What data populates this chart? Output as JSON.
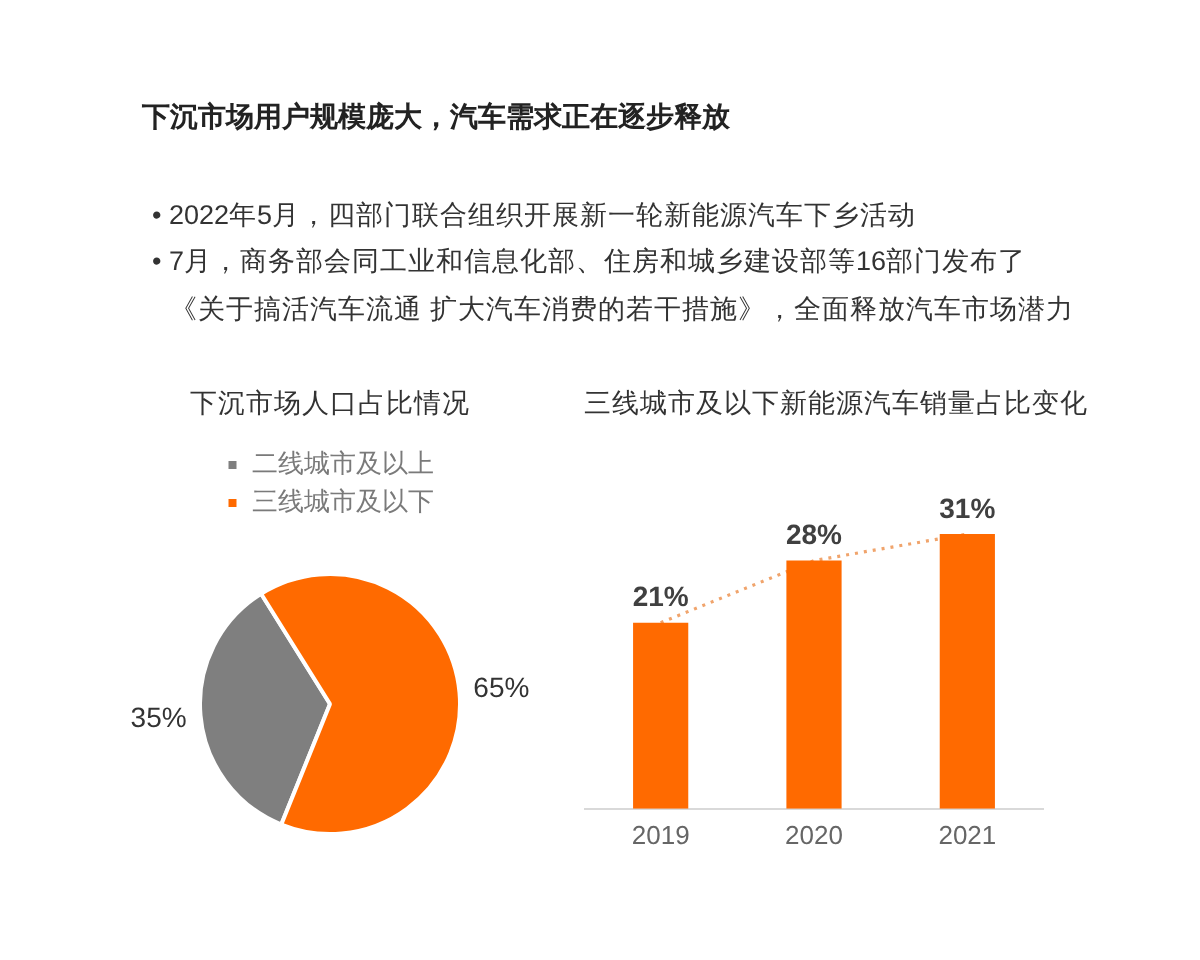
{
  "chart_data": [
    {
      "type": "other",
      "title": "下沉市场用户规模庞大，汽车需求正在逐步释放",
      "annotations": [
        "• 2022年5月，四部门联合组织开展新一轮新能源汽车下乡活动",
        "• 7月，商务部会同工业和信息化部、住房和城乡建设部等16部门发布了《关于搞活汽车流通 扩大汽车消费的若干措施》，全面释放汽车市场潜力"
      ]
    },
    {
      "type": "pie",
      "title": "下沉市场人口占比情况",
      "categories": [
        "二线城市及以上",
        "三线城市及以下"
      ],
      "values": [
        35,
        65
      ],
      "colors": [
        "#7f7f7f",
        "#ff6a00"
      ],
      "value_labels": [
        "35%",
        "65%"
      ],
      "legend": "top"
    },
    {
      "type": "bar",
      "title": "三线城市及以下新能源汽车销量占比变化",
      "categories": [
        "2019",
        "2020",
        "2021"
      ],
      "tick_labels": "x",
      "series": [
        {
          "type": "bar",
          "color": "#ff6a00",
          "values": [
            21,
            28,
            31
          ],
          "value_labels": [
            "21%",
            "28%",
            "31%"
          ]
        },
        {
          "type": "line",
          "color": "#f0a46c",
          "values": [
            21,
            28,
            31
          ],
          "line_style": "dotted",
          "marker": "none"
        }
      ]
    }
  ]
}
